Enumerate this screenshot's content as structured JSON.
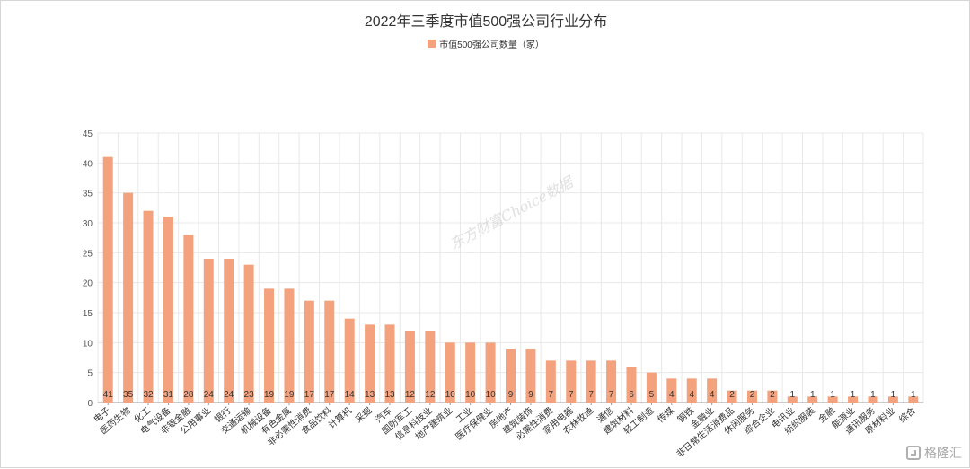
{
  "chart_data": {
    "type": "bar",
    "title": "2022年三季度市值500强公司行业分布",
    "legend_position": "top-center",
    "grid": true,
    "ylim": [
      0,
      45
    ],
    "yticks": [
      0,
      5,
      10,
      15,
      20,
      25,
      30,
      35,
      40,
      45
    ],
    "categories": [
      "电子",
      "医药生物",
      "化工",
      "电气设备",
      "非银金融",
      "公用事业",
      "银行",
      "交通运输",
      "机械设备",
      "有色金属",
      "非必需性消费",
      "食品饮料",
      "计算机",
      "采掘",
      "汽车",
      "国防军工",
      "信息科技业",
      "地产建筑业",
      "工业",
      "医疗保健业",
      "房地产",
      "建筑装饰",
      "必需性消费",
      "家用电器",
      "农林牧渔",
      "通信",
      "建筑材料",
      "轻工制造",
      "传媒",
      "钢铁",
      "金融业",
      "非日常生活消费品",
      "休闲服务",
      "综合企业",
      "电讯业",
      "纺织服装",
      "金融",
      "能源业",
      "通讯服务",
      "原材料业",
      "综合"
    ],
    "series": [
      {
        "name": "市值500强公司数量（家）",
        "color": "#f4a27e",
        "values": [
          41,
          35,
          32,
          31,
          28,
          24,
          24,
          23,
          19,
          19,
          17,
          17,
          14,
          13,
          13,
          12,
          12,
          10,
          10,
          10,
          9,
          9,
          7,
          7,
          7,
          7,
          6,
          5,
          4,
          4,
          4,
          2,
          2,
          2,
          1,
          1,
          1,
          1,
          1,
          1,
          1
        ]
      }
    ]
  },
  "watermark": "东方财富Choice数据",
  "brand": "格隆汇",
  "colors": {
    "bar": "#f4a27e",
    "grid": "#e8e8e8",
    "axis": "#999999",
    "text": "#333333"
  }
}
